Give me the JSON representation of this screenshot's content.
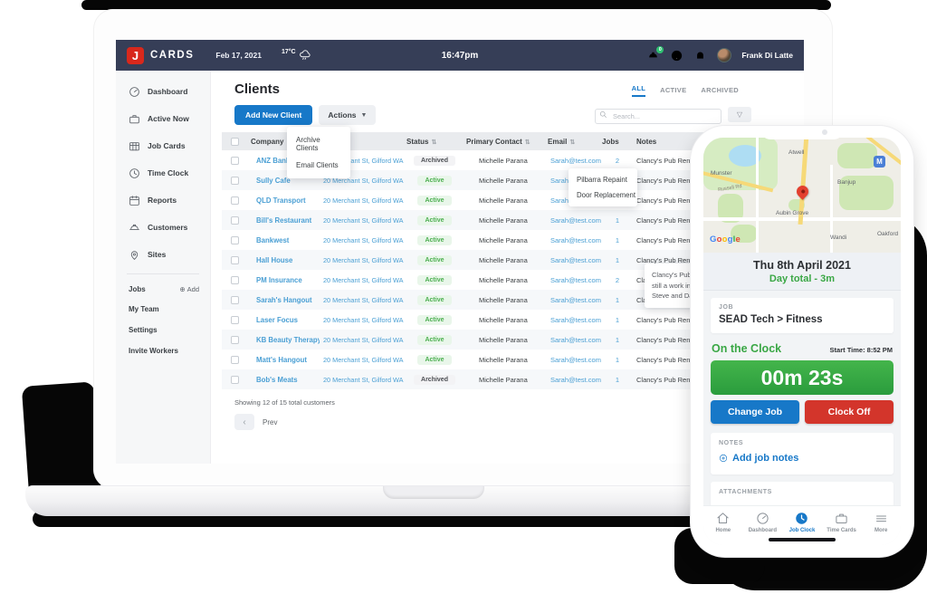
{
  "topbar": {
    "logo_j": "J",
    "logo_text": "CARDS",
    "date": "Feb 17, 2021",
    "temp": "17°C",
    "time": "16:47pm",
    "badge_count": "0",
    "user_name": "Frank Di Latte"
  },
  "sidebar": {
    "items": [
      "Dashboard",
      "Active Now",
      "Job Cards",
      "Time Clock",
      "Reports",
      "Customers",
      "Sites"
    ],
    "jobs_label": "Jobs",
    "add_label": "Add",
    "links": [
      "My Team",
      "Settings",
      "Invite Workers"
    ]
  },
  "clients": {
    "title": "Clients",
    "tabs": [
      "ALL",
      "ACTIVE",
      "ARCHIVED"
    ],
    "add_button": "Add New Client",
    "actions_button": "Actions",
    "actions_menu": [
      "Archive Clients",
      "Email Clients"
    ],
    "search_placeholder": "Search...",
    "table": {
      "headers": [
        {
          "label": "Company",
          "sort": false
        },
        {
          "label": "",
          "sort": true
        },
        {
          "label": "Status",
          "sort": true
        },
        {
          "label": "Primary Contact",
          "sort": true
        },
        {
          "label": "Email",
          "sort": true
        },
        {
          "label": "Jobs",
          "sort": false
        },
        {
          "label": "Notes",
          "sort": false
        }
      ],
      "rows": [
        {
          "company": "ANZ Bank",
          "address": "20 Merchant St, Gilford WA",
          "status": "Archived",
          "contact": "Michelle Parana",
          "email": "Sarah@test.com",
          "jobs": "2",
          "notes": "Clancy's Pub Renov"
        },
        {
          "company": "Sully Cafe",
          "address": "20 Merchant St, Gilford WA",
          "status": "Active",
          "contact": "Michelle Parana",
          "email": "Sarah@test.com",
          "jobs": "1",
          "notes": "Clancy's Pub Renov"
        },
        {
          "company": "QLD Transport",
          "address": "20 Merchant St, Gilford WA",
          "status": "Active",
          "contact": "Michelle Parana",
          "email": "Sarah@test.com",
          "jobs": "1",
          "notes": "Clancy's Pub Renov"
        },
        {
          "company": "Bill's Restaurant",
          "address": "20 Merchant St, Gilford WA",
          "status": "Active",
          "contact": "Michelle Parana",
          "email": "Sarah@test.com",
          "jobs": "1",
          "notes": "Clancy's Pub Renov"
        },
        {
          "company": "Bankwest",
          "address": "20 Merchant St, Gilford WA",
          "status": "Active",
          "contact": "Michelle Parana",
          "email": "Sarah@test.com",
          "jobs": "1",
          "notes": "Clancy's Pub Renov"
        },
        {
          "company": "Hall House",
          "address": "20 Merchant St, Gilford WA",
          "status": "Active",
          "contact": "Michelle Parana",
          "email": "Sarah@test.com",
          "jobs": "1",
          "notes": "Clancy's Pub Renov"
        },
        {
          "company": "PM Insurance",
          "address": "20 Merchant St, Gilford WA",
          "status": "Active",
          "contact": "Michelle Parana",
          "email": "Sarah@test.com",
          "jobs": "2",
          "notes": "Clancy's Pub Renov"
        },
        {
          "company": "Sarah's Hangout",
          "address": "20 Merchant St, Gilford WA",
          "status": "Active",
          "contact": "Michelle Parana",
          "email": "Sarah@test.com",
          "jobs": "1",
          "notes": "Clancy's Pub Renov"
        },
        {
          "company": "Laser Focus",
          "address": "20 Merchant St, Gilford WA",
          "status": "Active",
          "contact": "Michelle Parana",
          "email": "Sarah@test.com",
          "jobs": "1",
          "notes": "Clancy's Pub Renov"
        },
        {
          "company": "KB Beauty Therapy",
          "address": "20 Merchant St, Gilford WA",
          "status": "Active",
          "contact": "Michelle Parana",
          "email": "Sarah@test.com",
          "jobs": "1",
          "notes": "Clancy's Pub Renov"
        },
        {
          "company": "Matt's Hangout",
          "address": "20 Merchant St, Gilford WA",
          "status": "Active",
          "contact": "Michelle Parana",
          "email": "Sarah@test.com",
          "jobs": "1",
          "notes": "Clancy's Pub Renov"
        },
        {
          "company": "Bob's Meats",
          "address": "20 Merchant St, Gilford WA",
          "status": "Archived",
          "contact": "Michelle Parana",
          "email": "Sarah@test.com",
          "jobs": "1",
          "notes": "Clancy's Pub Renov"
        }
      ]
    },
    "jobs_popup": [
      "Pilbarra Repaint",
      "Door Replacement"
    ],
    "notes_tooltip": [
      "Clancy's Pub Ren.",
      "still a work in prog",
      "Steve and Dave."
    ],
    "footer": {
      "showing": "Showing 12 of 15 total customers",
      "prev": "Prev"
    }
  },
  "phone": {
    "map": {
      "labels": [
        "Munster",
        "Russell Rd",
        "Atwell",
        "Banjup",
        "Aubin Grove",
        "Wandi",
        "Oakford"
      ],
      "motorway": "M",
      "google_logo": "Google"
    },
    "date_header": {
      "date": "Thu 8th April 2021",
      "day_total": "Day total - 3m"
    },
    "job": {
      "label": "JOB",
      "value": "SEAD Tech > Fitness"
    },
    "clock": {
      "status": "On the Clock",
      "start_time": "Start Time: 8:52 PM",
      "timer": "00m 23s",
      "change_job": "Change Job",
      "clock_off": "Clock Off"
    },
    "notes": {
      "label": "NOTES",
      "add": "Add job notes"
    },
    "attachments": {
      "label": "ATTACHMENTS"
    },
    "tabbar": [
      {
        "label": "Home",
        "active": false
      },
      {
        "label": "Dashboard",
        "active": false
      },
      {
        "label": "Job Clock",
        "active": true
      },
      {
        "label": "Time Cards",
        "active": false
      },
      {
        "label": "More",
        "active": false
      }
    ]
  },
  "colors": {
    "navy": "#363e57",
    "logo-red": "#d8281c",
    "primary-blue": "#1778c8",
    "link-blue": "#4a9fd4",
    "green": "#3aa745",
    "red": "#d3352b"
  }
}
